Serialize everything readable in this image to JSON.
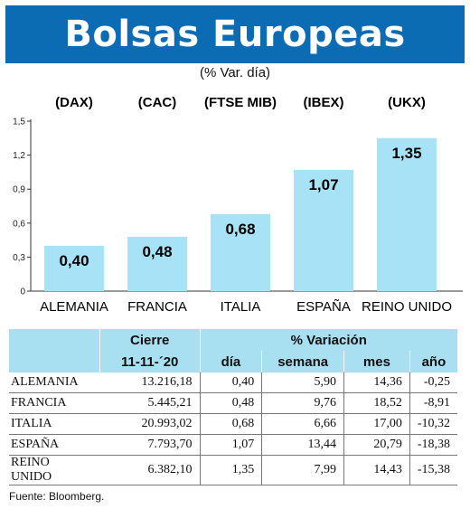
{
  "header": {
    "title": "Bolsas Europeas",
    "subtitle": "(% Var. día)"
  },
  "chart_data": {
    "type": "bar",
    "title": "Bolsas Europeas",
    "subtitle": "(% Var. día)",
    "categories": [
      "ALEMANIA",
      "FRANCIA",
      "ITALIA",
      "ESPAÑA",
      "REINO UNIDO"
    ],
    "index_codes": [
      "(DAX)",
      "(CAC)",
      "(FTSE MIB)",
      "(IBEX)",
      "(UKX)"
    ],
    "values": [
      0.4,
      0.48,
      0.68,
      1.07,
      1.35
    ],
    "value_labels": [
      "0,40",
      "0,48",
      "0,68",
      "1,07",
      "1,35"
    ],
    "yticks": [
      "0",
      "0,3",
      "0,6",
      "0,9",
      "1,2",
      "1,5"
    ],
    "ylim": [
      0,
      1.5
    ],
    "grid": false,
    "bar_color": "#a8e2f6"
  },
  "table": {
    "group_headers": [
      "Cierre",
      "% Variación"
    ],
    "sub_headers": [
      "11-11-´20",
      "día",
      "semana",
      "mes",
      "año"
    ],
    "rows": [
      {
        "country": "ALEMANIA",
        "cierre": "13.216,18",
        "dia": "0,40",
        "semana": "5,90",
        "mes": "14,36",
        "anio": "-0,25"
      },
      {
        "country": "FRANCIA",
        "cierre": "5.445,21",
        "dia": "0,48",
        "semana": "9,76",
        "mes": "18,52",
        "anio": "-8,91"
      },
      {
        "country": "ITALIA",
        "cierre": "20.993,02",
        "dia": "0,68",
        "semana": "6,66",
        "mes": "17,00",
        "anio": "-10,32"
      },
      {
        "country": "ESPAÑA",
        "cierre": "7.793,70",
        "dia": "1,07",
        "semana": "13,44",
        "mes": "20,79",
        "anio": "-18,38"
      },
      {
        "country": "REINO UNIDO",
        "cierre": "6.382,10",
        "dia": "1,35",
        "semana": "7,99",
        "mes": "14,43",
        "anio": "-15,38"
      }
    ]
  },
  "source": "Fuente: Bloomberg.",
  "colors": {
    "header_bg": "#0b6bb3",
    "table_header_bg": "#a8dff1"
  }
}
